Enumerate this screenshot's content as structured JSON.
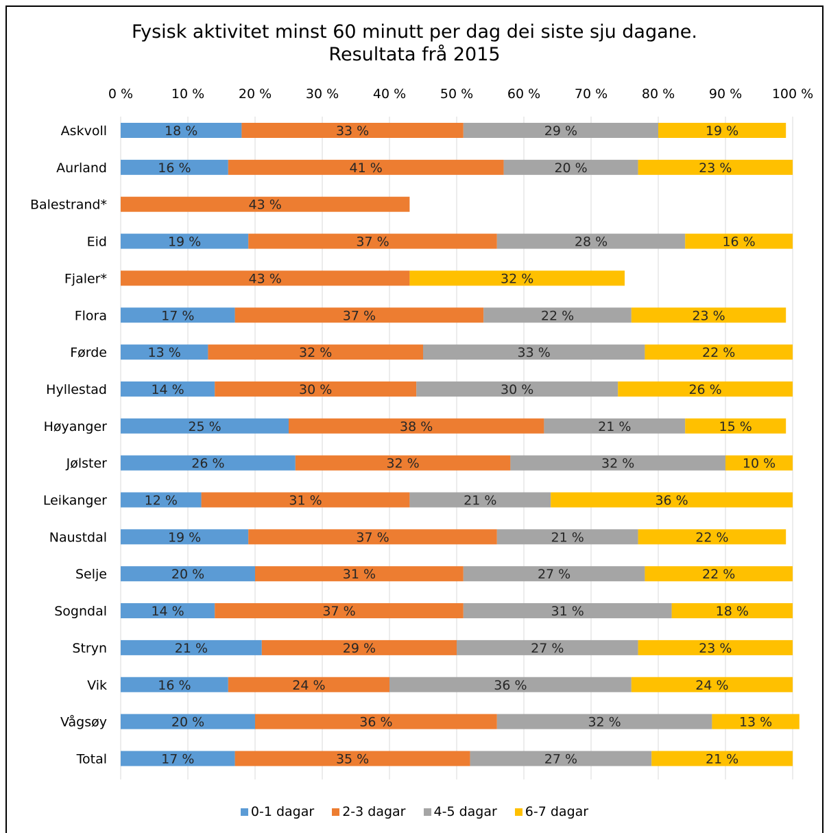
{
  "chart_data": {
    "type": "bar",
    "orientation": "horizontal-stacked-100",
    "title_lines": [
      "Fysisk aktivitet minst 60 minutt per dag dei siste sju dagane.",
      "Resultata frå 2015"
    ],
    "x_ticks": [
      "0 %",
      "10 %",
      "20 %",
      "30 %",
      "40 %",
      "50 %",
      "60 %",
      "70 %",
      "80 %",
      "90 %",
      "100 %"
    ],
    "xlim": [
      0,
      100
    ],
    "x_axis_position": "top",
    "grid": true,
    "legend_position": "bottom",
    "categories": [
      "Askvoll",
      "Aurland",
      "Balestrand*",
      "Eid",
      "Fjaler*",
      "Flora",
      "Førde",
      "Hyllestad",
      "Høyanger",
      "Jølster",
      "Leikanger",
      "Naustdal",
      "Selje",
      "Sogndal",
      "Stryn",
      "Vik",
      "Vågsøy",
      "Total"
    ],
    "series": [
      {
        "name": "0-1 dagar",
        "color": "#5B9BD5",
        "values": [
          18,
          16,
          null,
          19,
          null,
          17,
          13,
          14,
          25,
          26,
          12,
          19,
          20,
          14,
          21,
          16,
          20,
          17
        ],
        "labels": [
          "18 %",
          "16 %",
          "",
          "19 %",
          "",
          "17 %",
          "13 %",
          "14 %",
          "25 %",
          "26 %",
          "12 %",
          "19 %",
          "20 %",
          "14 %",
          "21 %",
          "16 %",
          "20 %",
          "17 %"
        ]
      },
      {
        "name": "2-3 dagar",
        "color": "#ED7D31",
        "values": [
          33,
          41,
          43,
          37,
          43,
          37,
          32,
          30,
          38,
          32,
          31,
          37,
          31,
          37,
          29,
          24,
          36,
          35
        ],
        "labels": [
          "33 %",
          "41 %",
          "43 %",
          "37 %",
          "43 %",
          "37 %",
          "32 %",
          "30 %",
          "38 %",
          "32 %",
          "31 %",
          "37 %",
          "31 %",
          "37 %",
          "29 %",
          "24 %",
          "36 %",
          "35 %"
        ]
      },
      {
        "name": "4-5 dagar",
        "color": "#A5A5A5",
        "values": [
          29,
          20,
          null,
          28,
          null,
          22,
          33,
          30,
          21,
          32,
          21,
          21,
          27,
          31,
          27,
          36,
          32,
          27
        ],
        "labels": [
          "29 %",
          "20 %",
          "",
          "28 %",
          "",
          "22 %",
          "33 %",
          "30 %",
          "21 %",
          "32 %",
          "21 %",
          "21 %",
          "27 %",
          "31 %",
          "27 %",
          "36 %",
          "32 %",
          "27 %"
        ]
      },
      {
        "name": "6-7 dagar",
        "color": "#FFC000",
        "values": [
          19,
          23,
          null,
          16,
          32,
          23,
          22,
          26,
          15,
          10,
          36,
          22,
          22,
          18,
          23,
          24,
          13,
          21
        ],
        "labels": [
          "19 %",
          "23 %",
          "",
          "16 %",
          "32 %",
          "23 %",
          "22 %",
          "26 %",
          "15 %",
          "10 %",
          "36 %",
          "22 %",
          "22 %",
          "18 %",
          "23 %",
          "24 %",
          "13 %",
          "21 %"
        ]
      }
    ]
  }
}
